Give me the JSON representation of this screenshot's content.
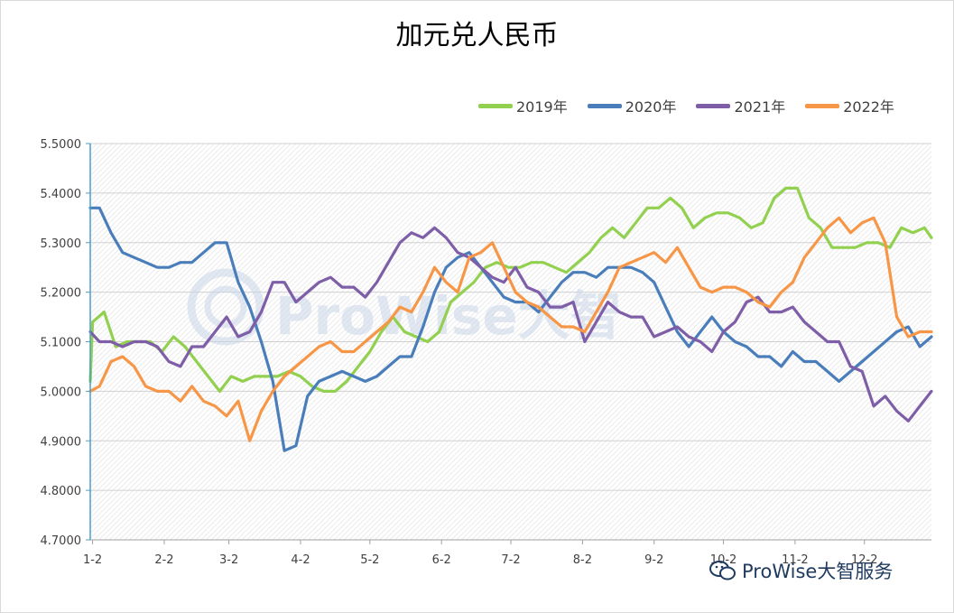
{
  "colors": {
    "2019": "#92d050",
    "2020": "#4a7ebb",
    "2021": "#7f5ea8",
    "2022": "#f79646"
  },
  "watermark_text": "ProWise大智",
  "brand": {
    "text": "ProWise大智服务",
    "icon": "wechat-icon"
  },
  "chart_data": {
    "type": "line",
    "title": "加元兑人民币",
    "xlabel": "",
    "ylabel": "",
    "ylim": [
      4.7,
      5.5
    ],
    "yticks": [
      "5.5000",
      "5.4000",
      "5.3000",
      "5.2000",
      "5.1000",
      "5.0000",
      "4.9000",
      "4.8000",
      "4.7000"
    ],
    "xticks": [
      "1-2",
      "2-2",
      "3-2",
      "4-2",
      "5-2",
      "6-2",
      "7-2",
      "8-2",
      "9-2",
      "10-2",
      "11-2",
      "12-2"
    ],
    "legend_position": "top-right",
    "grid": true,
    "series": [
      {
        "name": "2019年",
        "values": [
          [
            1,
            5.02
          ],
          [
            2,
            5.14
          ],
          [
            7,
            5.16
          ],
          [
            12,
            5.09
          ],
          [
            17,
            5.1
          ],
          [
            27,
            5.1
          ],
          [
            32,
            5.08
          ],
          [
            37,
            5.11
          ],
          [
            42,
            5.09
          ],
          [
            47,
            5.06
          ],
          [
            52,
            5.03
          ],
          [
            57,
            5.0
          ],
          [
            62,
            5.03
          ],
          [
            67,
            5.02
          ],
          [
            72,
            5.03
          ],
          [
            77,
            5.03
          ],
          [
            82,
            5.03
          ],
          [
            87,
            5.04
          ],
          [
            92,
            5.03
          ],
          [
            97,
            5.01
          ],
          [
            102,
            5.0
          ],
          [
            107,
            5.0
          ],
          [
            112,
            5.02
          ],
          [
            117,
            5.05
          ],
          [
            122,
            5.08
          ],
          [
            127,
            5.12
          ],
          [
            132,
            5.15
          ],
          [
            137,
            5.12
          ],
          [
            142,
            5.11
          ],
          [
            147,
            5.1
          ],
          [
            152,
            5.12
          ],
          [
            157,
            5.18
          ],
          [
            162,
            5.2
          ],
          [
            167,
            5.22
          ],
          [
            172,
            5.25
          ],
          [
            177,
            5.26
          ],
          [
            182,
            5.25
          ],
          [
            187,
            5.25
          ],
          [
            192,
            5.26
          ],
          [
            197,
            5.26
          ],
          [
            202,
            5.25
          ],
          [
            207,
            5.24
          ],
          [
            212,
            5.26
          ],
          [
            217,
            5.28
          ],
          [
            222,
            5.31
          ],
          [
            227,
            5.33
          ],
          [
            232,
            5.31
          ],
          [
            237,
            5.34
          ],
          [
            242,
            5.37
          ],
          [
            247,
            5.37
          ],
          [
            252,
            5.39
          ],
          [
            257,
            5.37
          ],
          [
            262,
            5.33
          ],
          [
            267,
            5.35
          ],
          [
            272,
            5.36
          ],
          [
            277,
            5.36
          ],
          [
            282,
            5.35
          ],
          [
            287,
            5.33
          ],
          [
            292,
            5.34
          ],
          [
            297,
            5.39
          ],
          [
            302,
            5.41
          ],
          [
            307,
            5.41
          ],
          [
            312,
            5.35
          ],
          [
            317,
            5.33
          ],
          [
            322,
            5.29
          ],
          [
            327,
            5.29
          ],
          [
            332,
            5.29
          ],
          [
            337,
            5.3
          ],
          [
            342,
            5.3
          ],
          [
            347,
            5.29
          ],
          [
            352,
            5.33
          ],
          [
            357,
            5.32
          ],
          [
            362,
            5.33
          ],
          [
            365,
            5.31
          ]
        ]
      },
      {
        "name": "2020年",
        "values": [
          [
            1,
            5.37
          ],
          [
            5,
            5.37
          ],
          [
            10,
            5.32
          ],
          [
            15,
            5.28
          ],
          [
            20,
            5.27
          ],
          [
            25,
            5.26
          ],
          [
            30,
            5.25
          ],
          [
            35,
            5.25
          ],
          [
            40,
            5.26
          ],
          [
            45,
            5.26
          ],
          [
            50,
            5.28
          ],
          [
            55,
            5.3
          ],
          [
            60,
            5.3
          ],
          [
            65,
            5.22
          ],
          [
            70,
            5.17
          ],
          [
            75,
            5.1
          ],
          [
            80,
            5.02
          ],
          [
            85,
            4.88
          ],
          [
            90,
            4.89
          ],
          [
            95,
            4.99
          ],
          [
            100,
            5.02
          ],
          [
            105,
            5.03
          ],
          [
            110,
            5.04
          ],
          [
            115,
            5.03
          ],
          [
            120,
            5.02
          ],
          [
            125,
            5.03
          ],
          [
            130,
            5.05
          ],
          [
            135,
            5.07
          ],
          [
            140,
            5.07
          ],
          [
            145,
            5.13
          ],
          [
            150,
            5.2
          ],
          [
            155,
            5.25
          ],
          [
            160,
            5.27
          ],
          [
            165,
            5.28
          ],
          [
            170,
            5.25
          ],
          [
            175,
            5.22
          ],
          [
            180,
            5.19
          ],
          [
            185,
            5.18
          ],
          [
            190,
            5.18
          ],
          [
            195,
            5.16
          ],
          [
            200,
            5.19
          ],
          [
            205,
            5.22
          ],
          [
            210,
            5.24
          ],
          [
            215,
            5.24
          ],
          [
            220,
            5.23
          ],
          [
            225,
            5.25
          ],
          [
            230,
            5.25
          ],
          [
            235,
            5.25
          ],
          [
            240,
            5.24
          ],
          [
            245,
            5.22
          ],
          [
            250,
            5.17
          ],
          [
            255,
            5.12
          ],
          [
            260,
            5.09
          ],
          [
            265,
            5.12
          ],
          [
            270,
            5.15
          ],
          [
            275,
            5.12
          ],
          [
            280,
            5.1
          ],
          [
            285,
            5.09
          ],
          [
            290,
            5.07
          ],
          [
            295,
            5.07
          ],
          [
            300,
            5.05
          ],
          [
            305,
            5.08
          ],
          [
            310,
            5.06
          ],
          [
            315,
            5.06
          ],
          [
            320,
            5.04
          ],
          [
            325,
            5.02
          ],
          [
            330,
            5.04
          ],
          [
            335,
            5.06
          ],
          [
            340,
            5.08
          ],
          [
            345,
            5.1
          ],
          [
            350,
            5.12
          ],
          [
            355,
            5.13
          ],
          [
            360,
            5.09
          ],
          [
            365,
            5.11
          ]
        ]
      },
      {
        "name": "2021年",
        "values": [
          [
            1,
            5.12
          ],
          [
            5,
            5.1
          ],
          [
            10,
            5.1
          ],
          [
            15,
            5.09
          ],
          [
            20,
            5.1
          ],
          [
            25,
            5.1
          ],
          [
            30,
            5.09
          ],
          [
            35,
            5.06
          ],
          [
            40,
            5.05
          ],
          [
            45,
            5.09
          ],
          [
            50,
            5.09
          ],
          [
            55,
            5.12
          ],
          [
            60,
            5.15
          ],
          [
            65,
            5.11
          ],
          [
            70,
            5.12
          ],
          [
            75,
            5.16
          ],
          [
            80,
            5.22
          ],
          [
            85,
            5.22
          ],
          [
            90,
            5.18
          ],
          [
            95,
            5.2
          ],
          [
            100,
            5.22
          ],
          [
            105,
            5.23
          ],
          [
            110,
            5.21
          ],
          [
            115,
            5.21
          ],
          [
            120,
            5.19
          ],
          [
            125,
            5.22
          ],
          [
            130,
            5.26
          ],
          [
            135,
            5.3
          ],
          [
            140,
            5.32
          ],
          [
            145,
            5.31
          ],
          [
            150,
            5.33
          ],
          [
            155,
            5.31
          ],
          [
            160,
            5.28
          ],
          [
            165,
            5.27
          ],
          [
            170,
            5.25
          ],
          [
            175,
            5.23
          ],
          [
            180,
            5.22
          ],
          [
            185,
            5.25
          ],
          [
            190,
            5.21
          ],
          [
            195,
            5.2
          ],
          [
            200,
            5.17
          ],
          [
            205,
            5.17
          ],
          [
            210,
            5.18
          ],
          [
            215,
            5.1
          ],
          [
            220,
            5.14
          ],
          [
            225,
            5.18
          ],
          [
            230,
            5.16
          ],
          [
            235,
            5.15
          ],
          [
            240,
            5.15
          ],
          [
            245,
            5.11
          ],
          [
            250,
            5.12
          ],
          [
            255,
            5.13
          ],
          [
            260,
            5.11
          ],
          [
            265,
            5.1
          ],
          [
            270,
            5.08
          ],
          [
            275,
            5.12
          ],
          [
            280,
            5.14
          ],
          [
            285,
            5.18
          ],
          [
            290,
            5.19
          ],
          [
            295,
            5.16
          ],
          [
            300,
            5.16
          ],
          [
            305,
            5.17
          ],
          [
            310,
            5.14
          ],
          [
            315,
            5.12
          ],
          [
            320,
            5.1
          ],
          [
            325,
            5.1
          ],
          [
            330,
            5.05
          ],
          [
            335,
            5.04
          ],
          [
            340,
            4.97
          ],
          [
            345,
            4.99
          ],
          [
            350,
            4.96
          ],
          [
            355,
            4.94
          ],
          [
            360,
            4.97
          ],
          [
            365,
            5.0
          ]
        ]
      },
      {
        "name": "2022年",
        "values": [
          [
            1,
            5.0
          ],
          [
            5,
            5.01
          ],
          [
            10,
            5.06
          ],
          [
            15,
            5.07
          ],
          [
            20,
            5.05
          ],
          [
            25,
            5.01
          ],
          [
            30,
            5.0
          ],
          [
            35,
            5.0
          ],
          [
            40,
            4.98
          ],
          [
            45,
            5.01
          ],
          [
            50,
            4.98
          ],
          [
            55,
            4.97
          ],
          [
            60,
            4.95
          ],
          [
            65,
            4.98
          ],
          [
            70,
            4.9
          ],
          [
            75,
            4.96
          ],
          [
            80,
            5.0
          ],
          [
            85,
            5.03
          ],
          [
            90,
            5.05
          ],
          [
            95,
            5.07
          ],
          [
            100,
            5.09
          ],
          [
            105,
            5.1
          ],
          [
            110,
            5.08
          ],
          [
            115,
            5.08
          ],
          [
            120,
            5.1
          ],
          [
            125,
            5.12
          ],
          [
            130,
            5.14
          ],
          [
            135,
            5.17
          ],
          [
            140,
            5.16
          ],
          [
            145,
            5.2
          ],
          [
            150,
            5.25
          ],
          [
            155,
            5.22
          ],
          [
            160,
            5.2
          ],
          [
            165,
            5.27
          ],
          [
            170,
            5.28
          ],
          [
            175,
            5.3
          ],
          [
            180,
            5.25
          ],
          [
            185,
            5.2
          ],
          [
            190,
            5.18
          ],
          [
            195,
            5.17
          ],
          [
            200,
            5.15
          ],
          [
            205,
            5.13
          ],
          [
            210,
            5.13
          ],
          [
            215,
            5.12
          ],
          [
            220,
            5.16
          ],
          [
            225,
            5.2
          ],
          [
            230,
            5.25
          ],
          [
            235,
            5.26
          ],
          [
            240,
            5.27
          ],
          [
            245,
            5.28
          ],
          [
            250,
            5.26
          ],
          [
            255,
            5.29
          ],
          [
            260,
            5.25
          ],
          [
            265,
            5.21
          ],
          [
            270,
            5.2
          ],
          [
            275,
            5.21
          ],
          [
            280,
            5.21
          ],
          [
            285,
            5.2
          ],
          [
            290,
            5.18
          ],
          [
            295,
            5.17
          ],
          [
            300,
            5.2
          ],
          [
            305,
            5.22
          ],
          [
            310,
            5.27
          ],
          [
            315,
            5.3
          ],
          [
            320,
            5.33
          ],
          [
            325,
            5.35
          ],
          [
            330,
            5.32
          ],
          [
            335,
            5.34
          ],
          [
            340,
            5.35
          ],
          [
            345,
            5.3
          ],
          [
            350,
            5.15
          ],
          [
            355,
            5.11
          ],
          [
            360,
            5.12
          ],
          [
            365,
            5.12
          ]
        ]
      }
    ]
  }
}
